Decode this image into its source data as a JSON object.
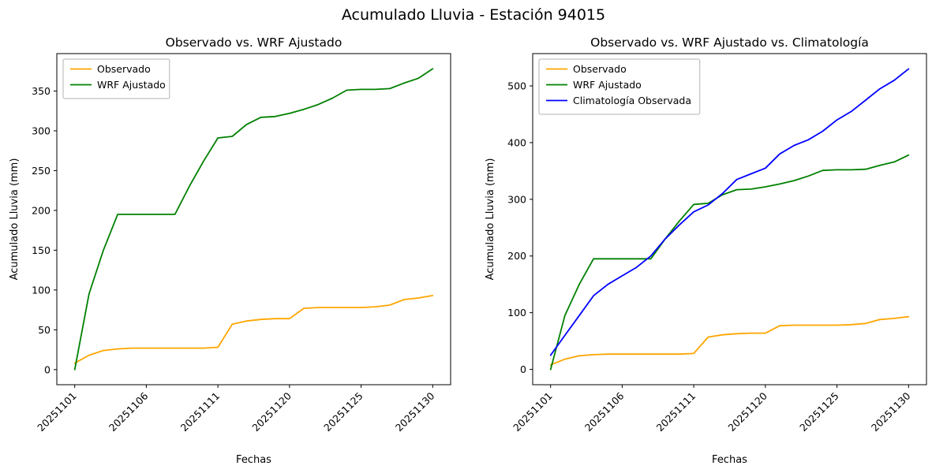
{
  "figure_title": "Acumulado Lluvia - Estación 94015",
  "chart_data": [
    {
      "type": "line",
      "title": "Observado vs. WRF Ajustado",
      "xlabel": "Fechas",
      "ylabel": "Acumulado Lluvia (mm)",
      "x_tick_labels": [
        "20251101",
        "20251106",
        "20251111",
        "20251120",
        "20251125",
        "20251130"
      ],
      "x_tick_indices": [
        0,
        5,
        10,
        15,
        20,
        25
      ],
      "y_ticks": [
        0,
        50,
        100,
        150,
        200,
        250,
        300,
        350
      ],
      "xlim": [
        -1.25,
        26.25
      ],
      "ylim": [
        -19,
        397
      ],
      "grid": false,
      "legend_position": "upper-left",
      "series": [
        {
          "name": "Observado",
          "color": "#ffa500",
          "values": [
            8,
            18,
            24,
            26,
            27,
            27,
            27,
            27,
            27,
            27,
            28,
            57,
            61,
            63,
            64,
            64,
            77,
            78,
            78,
            78,
            78,
            79,
            81,
            88,
            90,
            93
          ]
        },
        {
          "name": "WRF Ajustado",
          "color": "#008000",
          "values": [
            0,
            95,
            150,
            195,
            195,
            195,
            195,
            195,
            230,
            262,
            291,
            293,
            308,
            317,
            318,
            322,
            327,
            333,
            341,
            351,
            352,
            352,
            353,
            360,
            366,
            378
          ]
        }
      ]
    },
    {
      "type": "line",
      "title": "Observado vs. WRF Ajustado vs. Climatología",
      "xlabel": "Fechas",
      "ylabel": "Acumulado Lluvia (mm)",
      "x_tick_labels": [
        "20251101",
        "20251106",
        "20251111",
        "20251120",
        "20251125",
        "20251130"
      ],
      "x_tick_indices": [
        0,
        5,
        10,
        15,
        20,
        25
      ],
      "y_ticks": [
        0,
        100,
        200,
        300,
        400,
        500
      ],
      "xlim": [
        -1.25,
        26.25
      ],
      "ylim": [
        -27,
        557
      ],
      "grid": false,
      "legend_position": "upper-left",
      "series": [
        {
          "name": "Observado",
          "color": "#ffa500",
          "values": [
            8,
            18,
            24,
            26,
            27,
            27,
            27,
            27,
            27,
            27,
            28,
            57,
            61,
            63,
            64,
            64,
            77,
            78,
            78,
            78,
            78,
            79,
            81,
            88,
            90,
            93
          ]
        },
        {
          "name": "WRF Ajustado",
          "color": "#008000",
          "values": [
            0,
            95,
            150,
            195,
            195,
            195,
            195,
            195,
            230,
            262,
            291,
            293,
            308,
            317,
            318,
            322,
            327,
            333,
            341,
            351,
            352,
            352,
            353,
            360,
            366,
            378
          ]
        },
        {
          "name": "Climatología Observada",
          "color": "#0000ff",
          "values": [
            25,
            60,
            95,
            130,
            150,
            165,
            180,
            200,
            230,
            255,
            278,
            290,
            310,
            335,
            345,
            355,
            380,
            395,
            405,
            420,
            440,
            455,
            475,
            495,
            510,
            530
          ]
        }
      ]
    }
  ]
}
